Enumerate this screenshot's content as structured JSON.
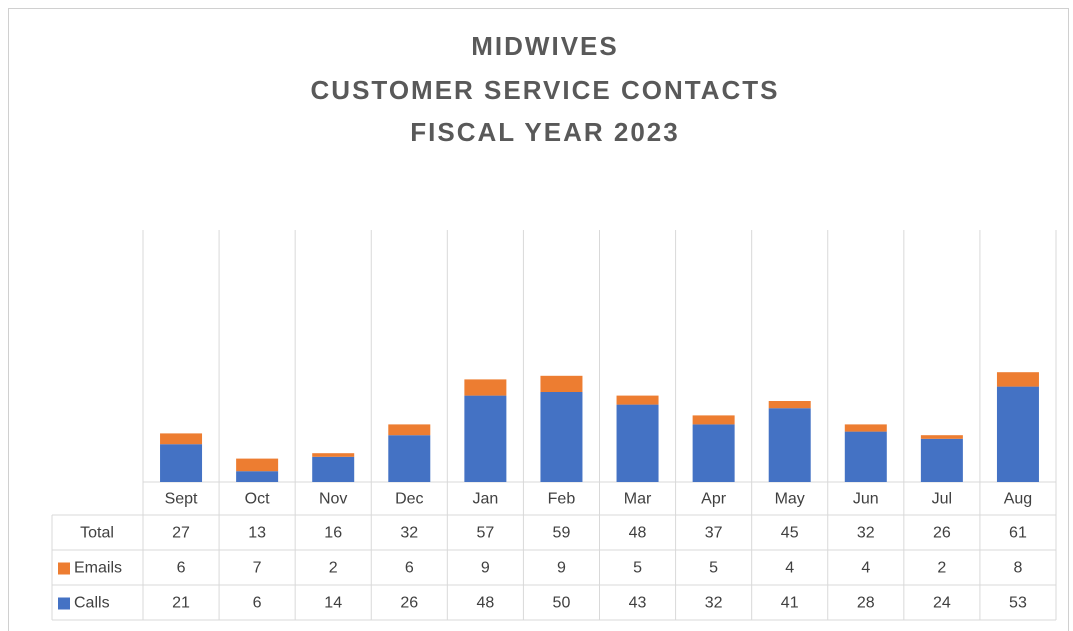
{
  "chart_data": {
    "type": "stacked_bar",
    "title": [
      "MIDWIVES",
      "CUSTOMER SERVICE CONTACTS",
      "FISCAL YEAR 2023"
    ],
    "categories": [
      "Sept",
      "Oct",
      "Nov",
      "Dec",
      "Jan",
      "Feb",
      "Mar",
      "Apr",
      "May",
      "Jun",
      "Jul",
      "Aug"
    ],
    "series": [
      {
        "name": "Calls",
        "color": "#4472c4",
        "values": [
          21,
          6,
          14,
          26,
          48,
          50,
          43,
          32,
          41,
          28,
          24,
          53
        ]
      },
      {
        "name": "Emails",
        "color": "#ed7d31",
        "values": [
          6,
          7,
          2,
          6,
          9,
          9,
          5,
          5,
          4,
          4,
          2,
          8
        ]
      }
    ],
    "total_label": "Total",
    "totals": [
      27,
      13,
      16,
      32,
      57,
      59,
      48,
      37,
      45,
      32,
      26,
      61
    ],
    "ylim": [
      0,
      140
    ]
  }
}
